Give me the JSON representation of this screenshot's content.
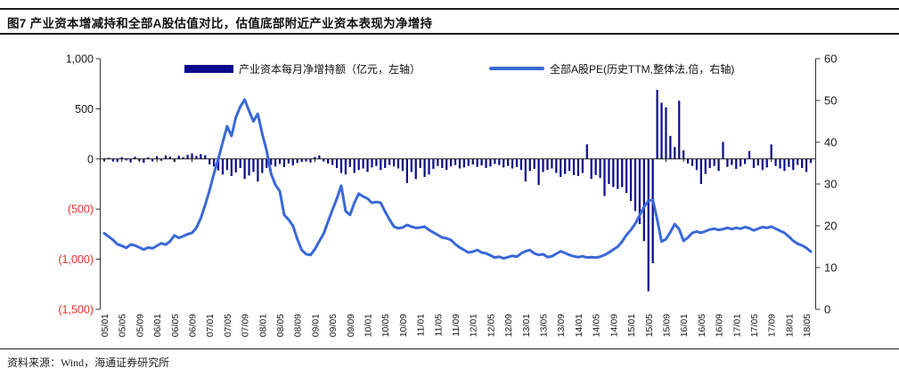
{
  "header": {
    "figure_label": "图7",
    "title": "图7  产业资本增减持和全部A股估值对比，估值底部附近产业资本表现为净增持"
  },
  "footer": {
    "source": "资料来源：Wind，海通证券研究所"
  },
  "chart_data": {
    "type": "bar+line combo",
    "title": "产业资本增减持和全部A股估值对比",
    "grid": false,
    "legend_position": "top",
    "legend": [
      {
        "label": "产业资本每月净增持额（亿元，左轴）",
        "type": "bar",
        "color": "#0a0a8a"
      },
      {
        "label": "全部A股PE(历史TTM,整体法,倍，右轴)",
        "type": "line",
        "color": "#3a68d8"
      }
    ],
    "x_start": "05/01",
    "x_end": "18/06",
    "x_tick_every_months": 4,
    "x_tick_labels": [
      "05/01",
      "05/05",
      "05/09",
      "06/01",
      "06/05",
      "06/09",
      "07/01",
      "07/05",
      "07/09",
      "08/01",
      "08/05",
      "08/09",
      "09/01",
      "09/05",
      "09/09",
      "10/01",
      "10/05",
      "10/09",
      "11/01",
      "11/05",
      "11/09",
      "12/01",
      "12/05",
      "12/09",
      "13/01",
      "13/05",
      "13/09",
      "14/01",
      "14/05",
      "14/09",
      "15/01",
      "15/05",
      "15/09",
      "16/01",
      "16/05",
      "16/09",
      "17/01",
      "17/05",
      "17/09",
      "18/01",
      "18/05"
    ],
    "left_axis": {
      "range": [
        -1500,
        1000
      ],
      "unit": "亿元",
      "negative_color": "#e8302a",
      "ticks": [
        {
          "label": "1,000",
          "value": 1000
        },
        {
          "label": "500",
          "value": 500
        },
        {
          "label": "0",
          "value": 0
        },
        {
          "label": "(500)",
          "value": -500
        },
        {
          "label": "(1,000)",
          "value": -1000
        },
        {
          "label": "(1,500)",
          "value": -1500
        }
      ]
    },
    "right_axis": {
      "range": [
        0,
        60
      ],
      "unit": "倍",
      "ticks": [
        {
          "label": "60",
          "value": 60
        },
        {
          "label": "50",
          "value": 50
        },
        {
          "label": "40",
          "value": 40
        },
        {
          "label": "30",
          "value": 30
        },
        {
          "label": "20",
          "value": 20
        },
        {
          "label": "10",
          "value": 10
        },
        {
          "label": "0",
          "value": 0
        }
      ]
    },
    "series": [
      {
        "name": "产业资本每月净增持额",
        "axis": "left",
        "type": "bar",
        "values": [
          -18,
          12,
          -25,
          -30,
          18,
          -15,
          -35,
          22,
          -20,
          -38,
          15,
          -25,
          28,
          -18,
          35,
          22,
          -28,
          32,
          18,
          40,
          55,
          30,
          48,
          38,
          -55,
          -75,
          -115,
          -155,
          -110,
          -170,
          -135,
          -90,
          -200,
          -165,
          -130,
          -225,
          -140,
          -90,
          -60,
          -75,
          -50,
          -80,
          -45,
          -65,
          -40,
          -30,
          -25,
          -35,
          20,
          35,
          -25,
          -45,
          -60,
          -90,
          -140,
          -155,
          -80,
          -140,
          -110,
          -95,
          -130,
          -85,
          -70,
          -110,
          -90,
          -60,
          -75,
          -95,
          -120,
          -240,
          -130,
          -200,
          -90,
          -180,
          -155,
          -100,
          -70,
          -90,
          -110,
          -75,
          -60,
          -95,
          -85,
          -70,
          -55,
          -80,
          -65,
          -90,
          -75,
          -50,
          -60,
          -85,
          -70,
          -95,
          -80,
          -110,
          -225,
          -120,
          -100,
          -260,
          -130,
          -110,
          -95,
          -140,
          -180,
          -150,
          -120,
          -160,
          -170,
          -140,
          145,
          -200,
          -160,
          -190,
          -370,
          -250,
          -280,
          -300,
          -280,
          -340,
          -420,
          -520,
          -650,
          -820,
          -1320,
          -1040,
          690,
          560,
          515,
          230,
          120,
          580,
          85,
          -45,
          -70,
          -110,
          -250,
          -150,
          -90,
          -70,
          -120,
          170,
          -80,
          -60,
          -100,
          -75,
          -50,
          78,
          -90,
          -65,
          -110,
          -85,
          145,
          -70,
          -95,
          -120,
          -80,
          -110,
          -60,
          -90,
          -130,
          -40
        ]
      },
      {
        "name": "全部A股PE(历史TTM,整体法)",
        "axis": "right",
        "type": "line",
        "values": [
          18.2,
          17.4,
          16.6,
          15.6,
          15.2,
          14.7,
          15.5,
          15.3,
          14.8,
          14.3,
          14.8,
          14.6,
          15.2,
          15.8,
          15.5,
          16.3,
          17.7,
          17.1,
          17.5,
          18.0,
          18.3,
          19.5,
          21.8,
          25.0,
          28.5,
          32.5,
          36.0,
          40.0,
          43.8,
          41.5,
          46.0,
          48.5,
          50.2,
          47.5,
          45.0,
          46.8,
          42.0,
          38.0,
          32.5,
          29.8,
          28.3,
          22.6,
          21.5,
          20.0,
          16.8,
          14.2,
          13.2,
          13.0,
          14.4,
          16.3,
          18.1,
          21.0,
          23.8,
          26.5,
          29.6,
          23.5,
          22.6,
          25.5,
          27.7,
          27.0,
          26.5,
          25.5,
          25.7,
          25.5,
          23.4,
          21.5,
          19.8,
          19.4,
          19.6,
          20.2,
          19.8,
          19.5,
          19.6,
          19.8,
          19.0,
          18.4,
          17.8,
          17.2,
          17.0,
          16.6,
          15.6,
          14.8,
          14.2,
          13.6,
          13.8,
          14.2,
          13.6,
          13.4,
          12.9,
          12.4,
          12.6,
          12.2,
          12.5,
          12.8,
          12.6,
          13.4,
          13.9,
          14.2,
          13.4,
          13.0,
          13.2,
          12.5,
          12.7,
          13.3,
          13.9,
          13.5,
          13.0,
          12.7,
          12.5,
          12.7,
          12.4,
          12.5,
          12.4,
          12.6,
          13.0,
          13.6,
          14.3,
          15.0,
          16.2,
          17.8,
          19.0,
          20.5,
          22.5,
          24.5,
          26.0,
          26.2,
          21.5,
          16.2,
          16.8,
          18.5,
          20.4,
          19.2,
          16.4,
          17.2,
          18.3,
          18.6,
          18.3,
          18.7,
          19.1,
          19.3,
          19.0,
          19.2,
          19.5,
          19.2,
          19.5,
          19.3,
          19.7,
          19.4,
          18.9,
          19.3,
          19.7,
          19.5,
          19.8,
          19.3,
          18.8,
          18.3,
          17.4,
          16.4,
          15.7,
          15.3,
          14.7,
          13.8
        ]
      }
    ]
  }
}
